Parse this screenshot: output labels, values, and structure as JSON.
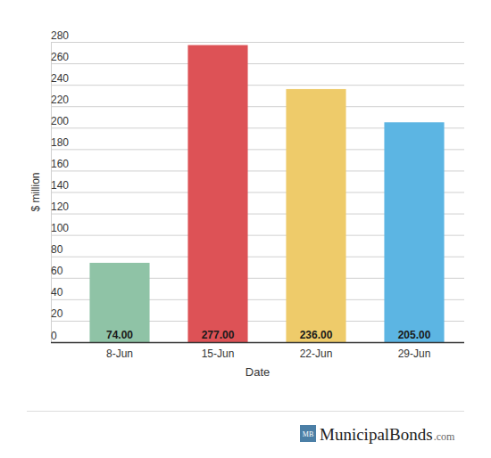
{
  "chart_data": {
    "type": "bar",
    "categories": [
      "8-Jun",
      "15-Jun",
      "22-Jun",
      "29-Jun"
    ],
    "values": [
      74,
      277,
      236,
      205
    ],
    "value_labels": [
      "74.00",
      "277.00",
      "236.00",
      "205.00"
    ],
    "colors": [
      "#8fc3a6",
      "#dd5256",
      "#eecb6a",
      "#5cb5e3"
    ],
    "x_label": "Date",
    "y_label": "$ million",
    "ylim": [
      0,
      280
    ],
    "yticks": [
      0,
      20,
      40,
      60,
      80,
      100,
      120,
      140,
      160,
      180,
      200,
      220,
      240,
      260,
      280
    ],
    "grid": true,
    "data_labels": true
  },
  "footer": {
    "badge": "MB",
    "brand": "MunicipalBonds",
    "suffix": ".com"
  }
}
